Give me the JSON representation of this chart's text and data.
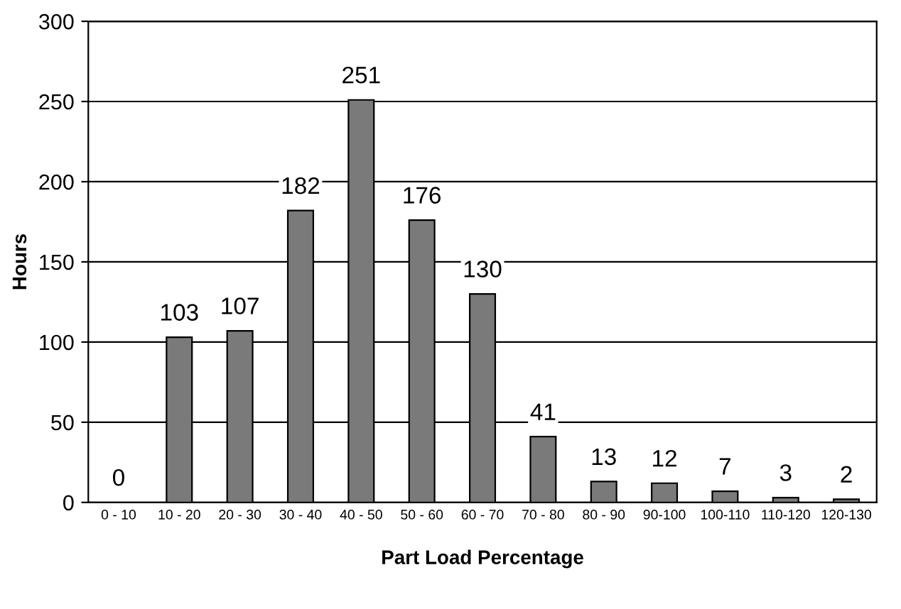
{
  "chart_data": {
    "type": "bar",
    "xlabel": "Part Load Percentage",
    "ylabel": "Hours",
    "categories": [
      "0 - 10",
      "10 - 20",
      "20 - 30",
      "30 - 40",
      "40 - 50",
      "50 - 60",
      "60 - 70",
      "70 - 80",
      "80 - 90",
      "90-100",
      "100-110",
      "110-120",
      "120-130"
    ],
    "values": [
      0,
      103,
      107,
      182,
      251,
      176,
      130,
      41,
      13,
      12,
      7,
      3,
      2
    ],
    "color": "#7a7a7a",
    "ylim": [
      0,
      300
    ],
    "yticks": [
      0,
      50,
      100,
      150,
      200,
      250,
      300
    ],
    "grid": "y",
    "data_labels": true
  }
}
